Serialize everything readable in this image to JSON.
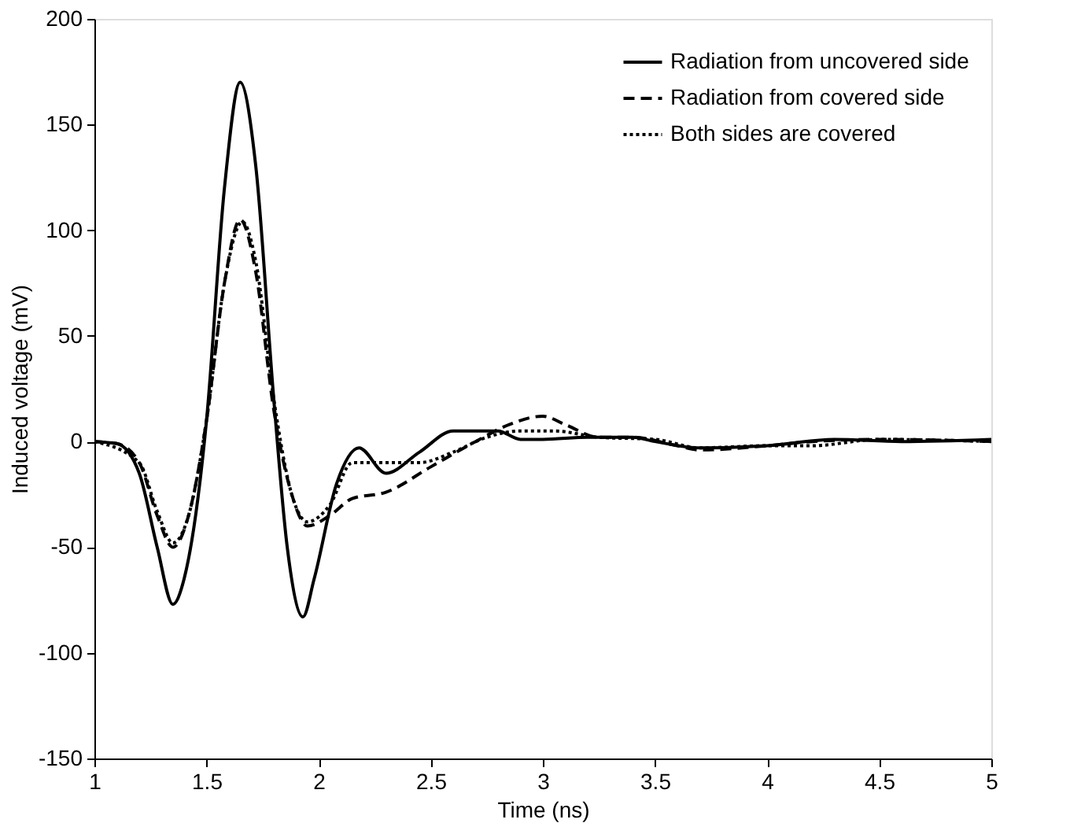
{
  "chart_data": {
    "type": "line",
    "xlabel": "Time (ns)",
    "ylabel": "Induced voltage (mV)",
    "xlim": [
      1,
      5
    ],
    "xticks": [
      1,
      1.5,
      2,
      2.5,
      3,
      3.5,
      4,
      4.5,
      5
    ],
    "ylim": [
      -150,
      200
    ],
    "yticks": [
      -150,
      -100,
      -50,
      0,
      50,
      100,
      150,
      200
    ],
    "grid": false,
    "legend": "top right",
    "marker": "none",
    "series": [
      {
        "name": "Radiation from uncovered side",
        "color": "#000000",
        "line_style": "solid",
        "x": [
          1.0,
          1.1,
          1.2,
          1.28,
          1.35,
          1.4,
          1.5,
          1.58,
          1.65,
          1.72,
          1.8,
          1.86,
          1.93,
          1.98,
          2.08,
          2.18,
          2.3,
          2.45,
          2.6,
          2.8,
          2.9,
          3.0,
          3.2,
          3.4,
          3.5,
          3.7,
          4.0,
          4.3,
          4.6,
          5.0
        ],
        "values": [
          0,
          -1,
          -15,
          -50,
          -77,
          -65,
          10,
          120,
          170,
          130,
          20,
          -50,
          -83,
          -65,
          -20,
          -3,
          -15,
          -5,
          5,
          5,
          1,
          1,
          2,
          2,
          0,
          -3,
          -2,
          1,
          0,
          1
        ]
      },
      {
        "name": "Radiation from covered side",
        "color": "#000000",
        "line_style": "dashed",
        "x": [
          1.0,
          1.1,
          1.2,
          1.28,
          1.35,
          1.42,
          1.5,
          1.58,
          1.65,
          1.72,
          1.8,
          1.88,
          1.95,
          2.05,
          2.15,
          2.3,
          2.5,
          2.7,
          2.85,
          3.0,
          3.1,
          3.25,
          3.4,
          3.6,
          3.7,
          4.0,
          4.2,
          4.5,
          5.0
        ],
        "values": [
          0,
          -1,
          -10,
          -35,
          -50,
          -35,
          10,
          75,
          105,
          80,
          15,
          -25,
          -40,
          -35,
          -27,
          -24,
          -12,
          0,
          8,
          12,
          8,
          2,
          2,
          -2,
          -4,
          -2,
          0,
          1,
          0
        ]
      },
      {
        "name": "Both sides are covered",
        "color": "#000000",
        "line_style": "dotted",
        "x": [
          1.0,
          1.2,
          1.28,
          1.35,
          1.42,
          1.5,
          1.58,
          1.66,
          1.72,
          1.8,
          1.88,
          1.95,
          2.05,
          2.15,
          2.3,
          2.45,
          2.6,
          2.75,
          2.9,
          3.05,
          3.25,
          3.5,
          3.7,
          4.0,
          4.2,
          4.5,
          5.0
        ],
        "values": [
          0,
          -10,
          -33,
          -48,
          -35,
          10,
          75,
          104,
          85,
          20,
          -25,
          -38,
          -30,
          -10,
          -10,
          -10,
          -5,
          2,
          5,
          5,
          2,
          1,
          -3,
          -2,
          -2,
          1,
          0
        ]
      }
    ]
  }
}
